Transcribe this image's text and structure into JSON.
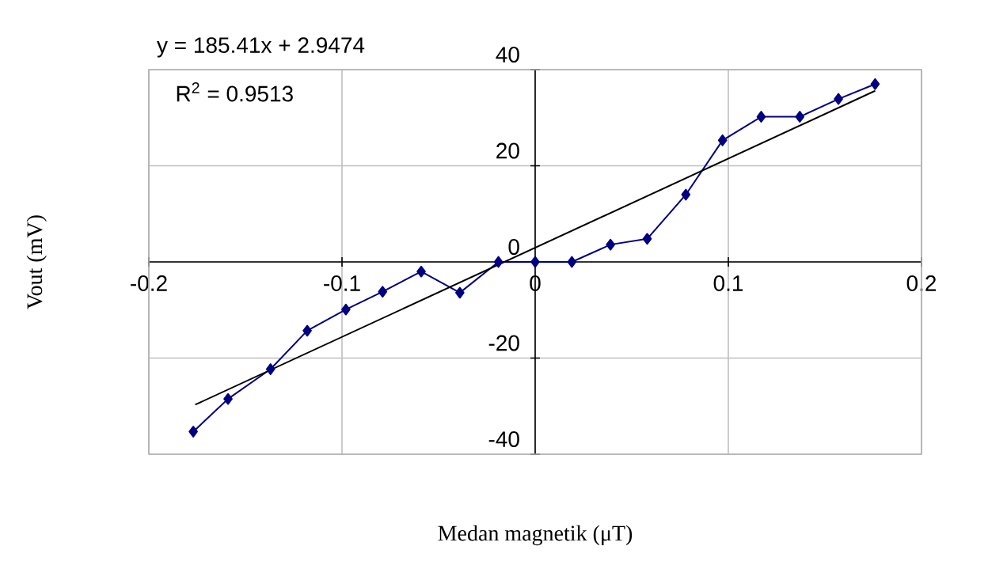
{
  "chart_data": {
    "type": "line",
    "xlabel": "Medan magnetik (μT)",
    "ylabel": "Vout (mV)",
    "annotations": [
      "y = 185.41x + 2.9474",
      "R$^{2}$ = 0.9513"
    ],
    "xlim": [
      -0.2,
      0.2
    ],
    "ylim": [
      -40,
      40
    ],
    "xticks": [
      -0.2,
      -0.1,
      0,
      0.1,
      0.2
    ],
    "yticks": [
      -40,
      -20,
      0,
      20,
      40
    ],
    "grid": true,
    "series": [
      {
        "color": "#000080",
        "marker": "diamond",
        "x": [
          -0.177,
          -0.159,
          -0.137,
          -0.118,
          -0.098,
          -0.079,
          -0.059,
          -0.039,
          -0.019,
          0,
          0.019,
          0.039,
          0.058,
          0.078,
          0.097,
          0.117,
          0.137,
          0.157,
          0.176
        ],
        "values": [
          -35.3,
          -28.5,
          -22.3,
          -14.3,
          -9.9,
          -6.2,
          -2.0,
          -6.4,
          0,
          0,
          0,
          3.6,
          4.8,
          14.0,
          25.3,
          30.2,
          30.2,
          33.9,
          37.0
        ]
      },
      {
        "type": "line",
        "color": "#000000",
        "marker": "none",
        "x": [
          -0.176,
          0.176
        ],
        "values": [
          -29.7,
          35.6
        ]
      }
    ]
  }
}
